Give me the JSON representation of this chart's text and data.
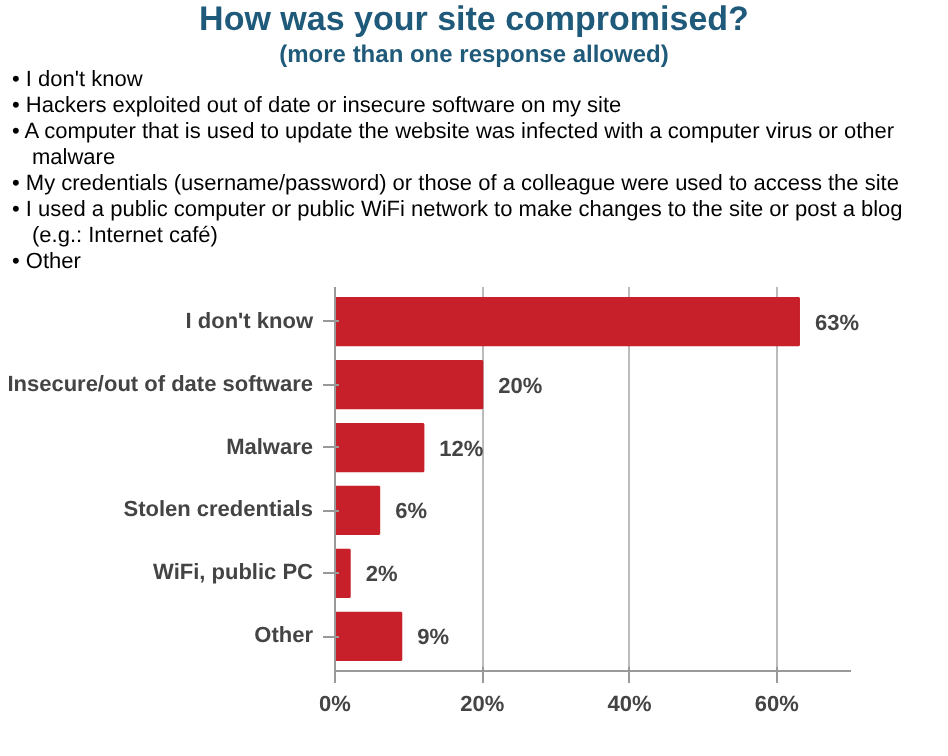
{
  "chart_data": {
    "type": "bar",
    "orientation": "horizontal",
    "title": "How was your site compromised?",
    "subtitle": "(more than one response allowed)",
    "annotations": [
      "• I don't know",
      "• Hackers exploited out of date or insecure software on my site",
      "• A computer that is used to update the website was infected with a computer virus or other malware",
      "• My credentials (username/password) or those of a colleague were used to access the site",
      "• I used a public computer or public WiFi network to make changes to the site or post a blog (e.g.: Internet café)",
      "• Other"
    ],
    "categories": [
      "I don't know",
      "Insecure/out of date software",
      "Malware",
      "Stolen credentials",
      "WiFi, public PC",
      "Other"
    ],
    "values": [
      63,
      20,
      12,
      6,
      2,
      9
    ],
    "value_labels": [
      "63%",
      "20%",
      "12%",
      "6%",
      "2%",
      "9%"
    ],
    "color": "#c8202a",
    "xlim": [
      0,
      70
    ],
    "xticks": [
      {
        "value": 0,
        "label": "0%"
      },
      {
        "value": 20,
        "label": "20%"
      },
      {
        "value": 40,
        "label": "40%"
      },
      {
        "value": 60,
        "label": "60%"
      }
    ],
    "grid": "x"
  }
}
